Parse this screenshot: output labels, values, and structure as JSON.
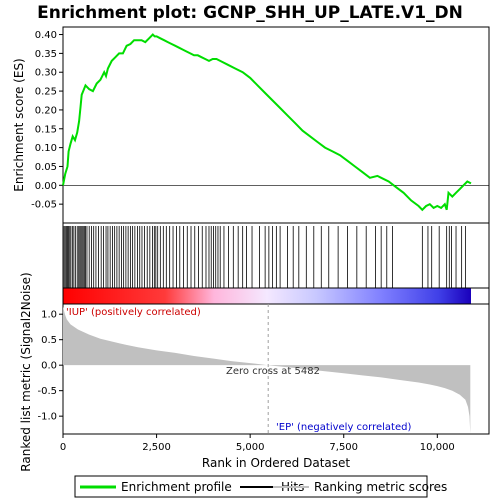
{
  "chart_data": {
    "type": "line",
    "title": "Enrichment plot: GCNP_SHH_UP_LATE.V1_DN",
    "xlabel": "Rank in Ordered Dataset",
    "ylabel_top": "Enrichment score (ES)",
    "ylabel_bottom": "Ranked list metric (Signal2Noise)",
    "xlim": [
      0,
      10900
    ],
    "x_ticks": [
      0,
      2500,
      5000,
      7500,
      10000
    ],
    "x_tick_labels": [
      "0",
      "2,500",
      "5,000",
      "7,500",
      "10,000"
    ],
    "es_ylim": [
      -0.1,
      0.42
    ],
    "es_ticks": [
      -0.05,
      0.0,
      0.05,
      0.1,
      0.15,
      0.2,
      0.25,
      0.3,
      0.35,
      0.4
    ],
    "es_tick_labels": [
      "-0.05",
      "0.00",
      "0.05",
      "0.10",
      "0.15",
      "0.20",
      "0.25",
      "0.30",
      "0.35",
      "0.40"
    ],
    "metric_ylim": [
      -1.35,
      1.2
    ],
    "metric_ticks": [
      -1.0,
      -0.5,
      0.0,
      0.5,
      1.0
    ],
    "metric_tick_labels": [
      "-1.0",
      "-0.5",
      "0.0",
      "0.5",
      "1.0"
    ],
    "zero_cross_rank": 5482,
    "zero_cross_label": "Zero cross at 5482",
    "positive_label": "'IUP' (positively correlated)",
    "negative_label": "'EP' (negatively correlated)",
    "colors": {
      "es_line": "#00dd00",
      "pos_text": "#cc0000",
      "neg_text": "#0000cc",
      "metric_fill": "#c0c0c0"
    },
    "series": [
      {
        "name": "Enrichment profile",
        "x": [
          0,
          60,
          120,
          150,
          200,
          260,
          320,
          380,
          430,
          470,
          500,
          540,
          600,
          700,
          800,
          900,
          1000,
          1100,
          1150,
          1200,
          1300,
          1400,
          1500,
          1600,
          1700,
          1800,
          1900,
          2000,
          2100,
          2200,
          2300,
          2400,
          2450,
          2500,
          2600,
          2700,
          2800,
          2900,
          3000,
          3100,
          3200,
          3300,
          3400,
          3500,
          3600,
          3700,
          3800,
          3900,
          4000,
          4050,
          4100,
          4200,
          4400,
          4600,
          4800,
          5000,
          5200,
          5400,
          5600,
          5800,
          6000,
          6200,
          6400,
          6600,
          6800,
          7000,
          7200,
          7400,
          7600,
          7800,
          8000,
          8200,
          8400,
          8500,
          8700,
          8900,
          9100,
          9300,
          9500,
          9600,
          9700,
          9800,
          9900,
          10000,
          10100,
          10200,
          10250,
          10300,
          10400,
          10500,
          10600,
          10700,
          10800,
          10900
        ],
        "es": [
          0.0,
          0.03,
          0.05,
          0.09,
          0.11,
          0.13,
          0.12,
          0.14,
          0.17,
          0.21,
          0.24,
          0.25,
          0.265,
          0.255,
          0.25,
          0.27,
          0.28,
          0.3,
          0.29,
          0.31,
          0.33,
          0.34,
          0.35,
          0.35,
          0.37,
          0.375,
          0.385,
          0.385,
          0.385,
          0.38,
          0.39,
          0.4,
          0.395,
          0.395,
          0.39,
          0.385,
          0.38,
          0.375,
          0.37,
          0.365,
          0.36,
          0.355,
          0.35,
          0.345,
          0.345,
          0.34,
          0.335,
          0.33,
          0.335,
          0.335,
          0.335,
          0.33,
          0.32,
          0.31,
          0.3,
          0.285,
          0.265,
          0.245,
          0.225,
          0.205,
          0.185,
          0.165,
          0.145,
          0.13,
          0.115,
          0.1,
          0.09,
          0.08,
          0.065,
          0.05,
          0.035,
          0.02,
          0.025,
          0.02,
          0.01,
          -0.005,
          -0.02,
          -0.04,
          -0.055,
          -0.065,
          -0.055,
          -0.05,
          -0.06,
          -0.055,
          -0.06,
          -0.05,
          -0.065,
          -0.02,
          -0.03,
          -0.02,
          -0.01,
          0.0,
          0.01,
          0.005
        ]
      }
    ],
    "hits": [
      30,
      60,
      90,
      120,
      150,
      180,
      210,
      250,
      290,
      330,
      380,
      420,
      450,
      480,
      510,
      540,
      570,
      600,
      640,
      700,
      760,
      820,
      880,
      950,
      1020,
      1080,
      1150,
      1200,
      1260,
      1320,
      1380,
      1440,
      1500,
      1560,
      1620,
      1680,
      1740,
      1800,
      1860,
      1920,
      1990,
      2050,
      2110,
      2180,
      2250,
      2320,
      2390,
      2440,
      2480,
      2530,
      2600,
      2680,
      2760,
      2850,
      2940,
      3030,
      3120,
      3220,
      3320,
      3420,
      3520,
      3620,
      3720,
      3820,
      3900,
      3960,
      4020,
      4080,
      4140,
      4200,
      4300,
      4420,
      4550,
      4680,
      4800,
      4900,
      5050,
      5250,
      5400,
      5500,
      5600,
      5700,
      5800,
      6000,
      6150,
      6300,
      6500,
      6700,
      6900,
      7100,
      7350,
      7600,
      7850,
      8100,
      8350,
      8500,
      8650,
      8800,
      9600,
      9750,
      9850,
      10050,
      10250,
      10320,
      10380,
      10500,
      10650,
      10750
    ],
    "metric_profile": {
      "x": [
        0,
        50,
        100,
        200,
        400,
        700,
        1000,
        1500,
        2000,
        2500,
        3000,
        3500,
        4000,
        4500,
        5000,
        5482,
        6000,
        6500,
        7000,
        7500,
        8000,
        8500,
        9000,
        9500,
        9800,
        10000,
        10200,
        10400,
        10600,
        10750,
        10820,
        10860,
        10880
      ],
      "y": [
        1.15,
        1.0,
        0.9,
        0.8,
        0.7,
        0.6,
        0.52,
        0.43,
        0.35,
        0.29,
        0.24,
        0.18,
        0.13,
        0.08,
        0.04,
        0.0,
        -0.04,
        -0.08,
        -0.12,
        -0.16,
        -0.2,
        -0.24,
        -0.29,
        -0.34,
        -0.38,
        -0.41,
        -0.45,
        -0.5,
        -0.58,
        -0.68,
        -0.82,
        -1.0,
        -1.35
      ]
    },
    "legend": [
      {
        "label": "Enrichment profile",
        "kind": "line",
        "color": "#00dd00"
      },
      {
        "label": "Hits",
        "kind": "line",
        "color": "#000000"
      },
      {
        "label": "Ranking metric scores",
        "kind": "line",
        "color": "#c0c0c0"
      }
    ]
  }
}
